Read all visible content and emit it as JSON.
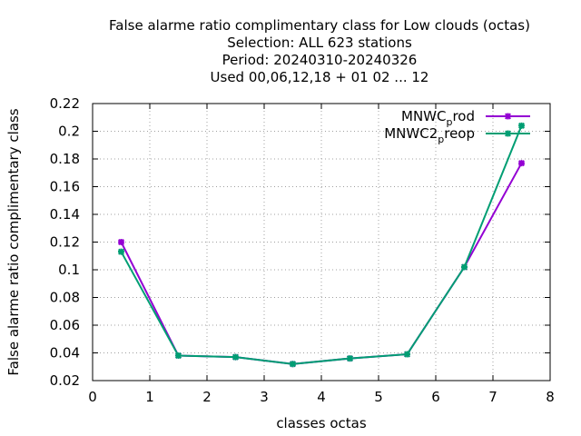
{
  "chart_data": {
    "type": "line",
    "title_lines": [
      "False alarme ratio complimentary class  for Low clouds (octas)",
      "Selection: ALL    623 stations",
      "Period: 20240310-20240326",
      "Used  00,06,12,18 + 01 02 ... 12"
    ],
    "xlabel": "classes octas",
    "ylabel": "False alarme ratio complimentary class",
    "xlim": [
      0,
      8
    ],
    "ylim": [
      0.02,
      0.22
    ],
    "xticks": [
      0,
      1,
      2,
      3,
      4,
      5,
      6,
      7,
      8
    ],
    "xtick_labels": [
      "0",
      "1",
      "2",
      "3",
      "4",
      "5",
      "6",
      "7",
      "8"
    ],
    "yticks": [
      0.02,
      0.04,
      0.06,
      0.08,
      0.1,
      0.12,
      0.14,
      0.16,
      0.18,
      0.2,
      0.22
    ],
    "ytick_labels": [
      "0.02",
      "0.04",
      "0.06",
      "0.08",
      "0.1",
      "0.12",
      "0.14",
      "0.16",
      "0.18",
      "0.2",
      "0.22"
    ],
    "grid": true,
    "legend_position": "top-right",
    "series": [
      {
        "legend_main": "MNWC",
        "legend_sub": "p",
        "legend_tail": "rod",
        "color": "#9400d3",
        "x": [
          0.5,
          1.5,
          2.5,
          3.5,
          4.5,
          5.5,
          6.5,
          7.5
        ],
        "y": [
          0.12,
          0.038,
          0.037,
          0.032,
          0.036,
          0.039,
          0.102,
          0.177
        ]
      },
      {
        "legend_main": "MNWC2",
        "legend_sub": "p",
        "legend_tail": "reop",
        "color": "#009e73",
        "x": [
          0.5,
          1.5,
          2.5,
          3.5,
          4.5,
          5.5,
          6.5,
          7.5
        ],
        "y": [
          0.113,
          0.038,
          0.037,
          0.032,
          0.036,
          0.039,
          0.102,
          0.204
        ]
      }
    ]
  }
}
